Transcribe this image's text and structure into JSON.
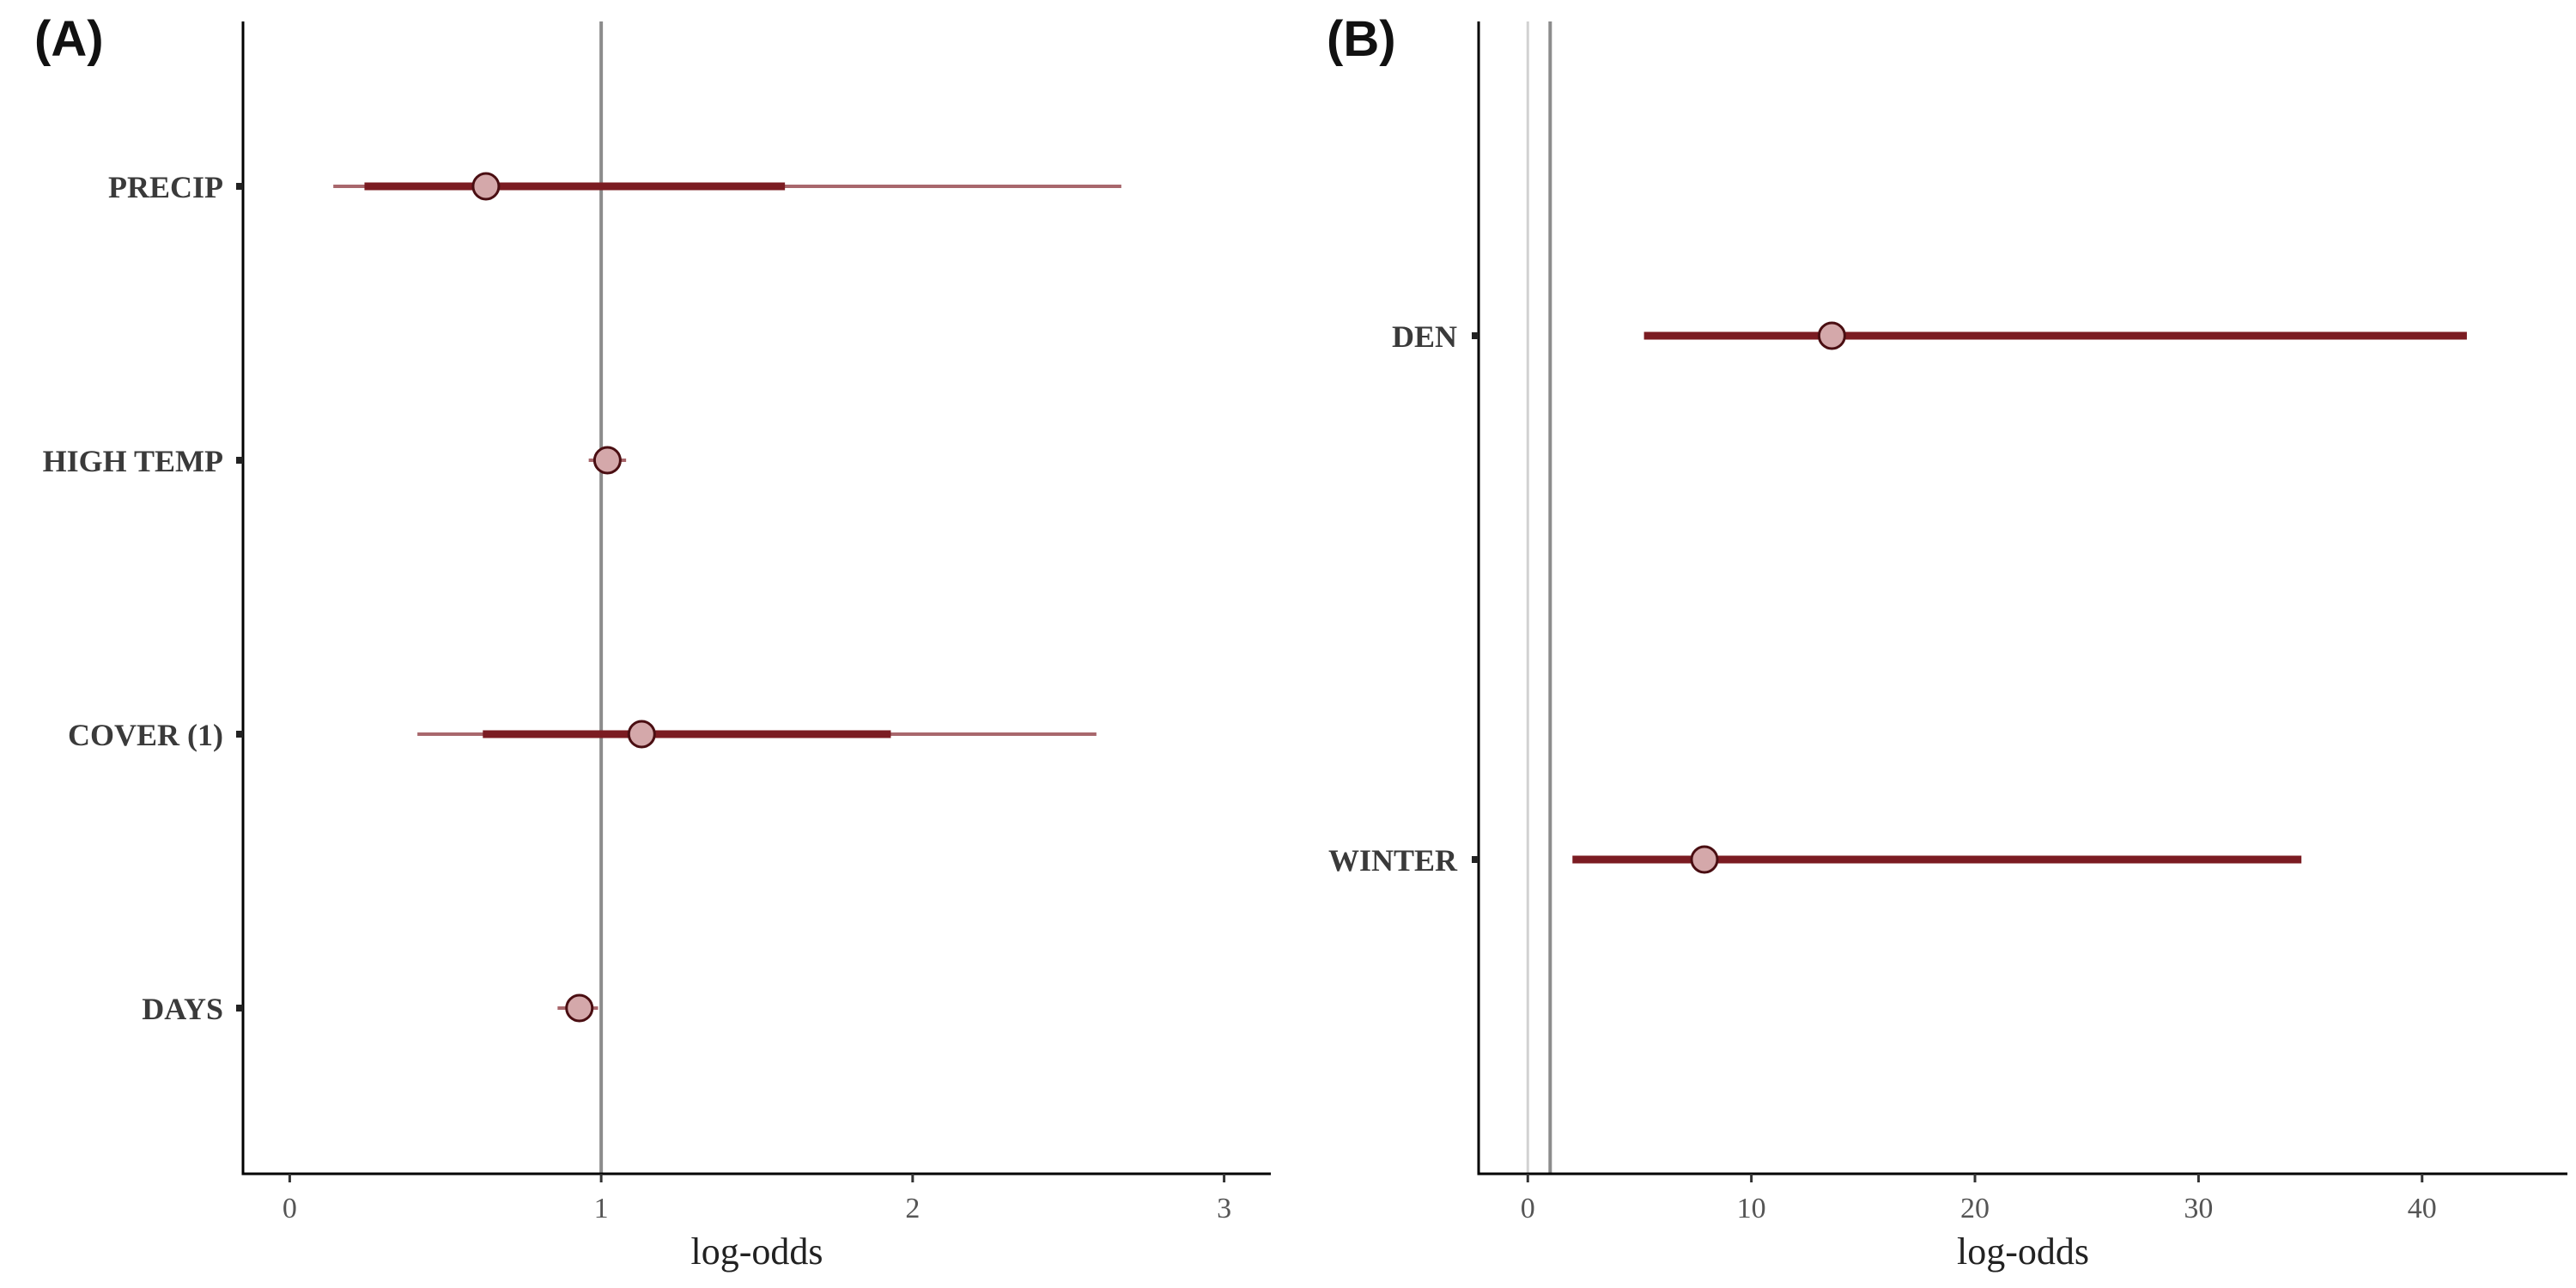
{
  "chart_data": [
    {
      "type": "forest",
      "panel_label": "(A)",
      "xlabel": "log-odds",
      "ylabel": "",
      "xlim": [
        -0.15,
        3.15
      ],
      "xticks": [
        0,
        1,
        2,
        3
      ],
      "reference_lines": [
        1
      ],
      "categories": [
        "PRECIP",
        "HIGH TEMP",
        "COVER (1)",
        "DAYS"
      ],
      "estimates": [
        0.63,
        1.02,
        1.13,
        0.93
      ],
      "inner_interval": [
        [
          0.24,
          1.59
        ],
        [
          0.98,
          1.05
        ],
        [
          0.62,
          1.93
        ],
        [
          0.89,
          0.97
        ]
      ],
      "outer_interval": [
        [
          0.14,
          2.67
        ],
        [
          0.96,
          1.08
        ],
        [
          0.41,
          2.59
        ],
        [
          0.86,
          0.99
        ]
      ],
      "colors": {
        "interval": "#7b1c22",
        "outer_interval": "#a8676c",
        "point_fill": "#d4a8aa",
        "point_stroke": "#4a0e12",
        "reference": "#8c8c8c"
      }
    },
    {
      "type": "forest",
      "panel_label": "(B)",
      "xlabel": "log-odds",
      "ylabel": "",
      "xlim": [
        -2.2,
        46.5
      ],
      "xticks": [
        0,
        10,
        20,
        30,
        40
      ],
      "reference_lines": [
        0,
        1
      ],
      "categories": [
        "DEN",
        "WINTER"
      ],
      "estimates": [
        13.6,
        7.9
      ],
      "inner_interval": [
        [
          5.2,
          42.0
        ],
        [
          2.0,
          34.6
        ]
      ],
      "outer_interval": [
        [
          5.2,
          42.0
        ],
        [
          2.0,
          34.6
        ]
      ],
      "colors": {
        "interval": "#7b1c22",
        "outer_interval": "#a8676c",
        "point_fill": "#d4a8aa",
        "point_stroke": "#4a0e12",
        "reference": "#8c8c8c"
      }
    }
  ]
}
